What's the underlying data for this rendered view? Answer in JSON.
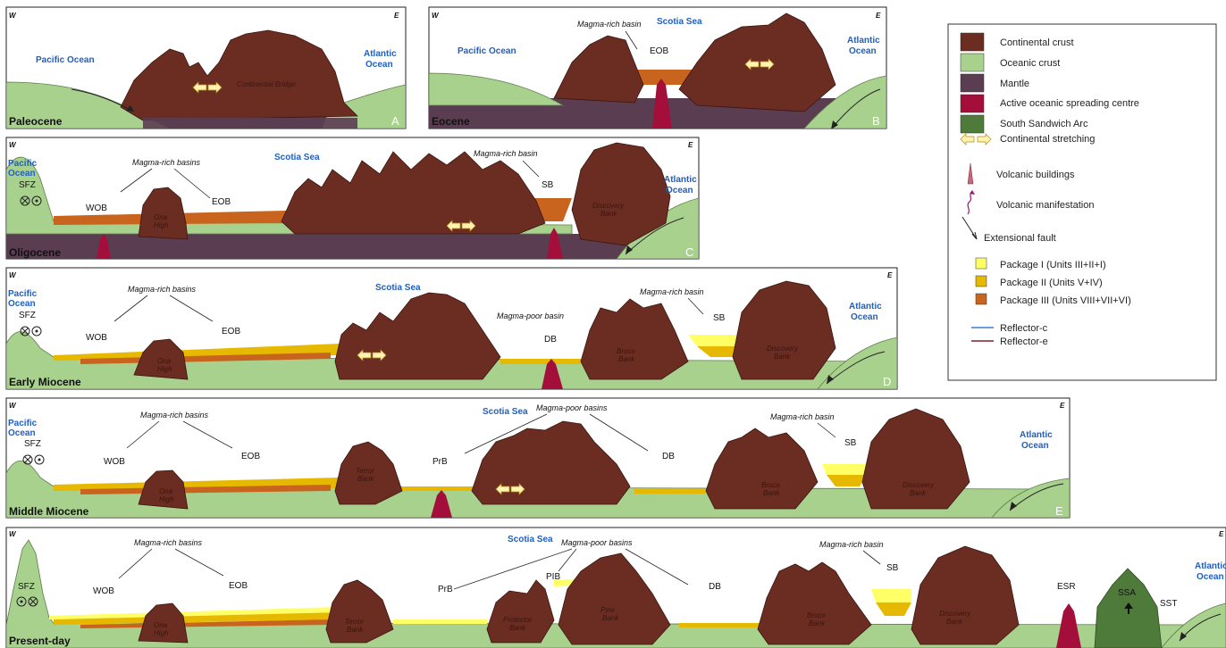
{
  "colors": {
    "continental_crust": "#6b2d22",
    "oceanic_crust": "#a9d18e",
    "mantle": "#5b3d52",
    "spreading_centre": "#a30f3a",
    "south_sandwich_arc": "#4e7a3a",
    "package1": "#ffff66",
    "package2": "#e6b800",
    "package3": "#c8641e",
    "reflector_c": "#3a7bd5",
    "reflector_e": "#8b1a2b",
    "ocean_label": "#1f5fbf"
  },
  "direction": {
    "west": "W",
    "east": "E"
  },
  "panels": {
    "A": {
      "epoch": "Paleocene",
      "letter": "A",
      "pacific": [
        "Pacific Ocean"
      ],
      "atlantic": [
        "Atlantic",
        "Ocean"
      ],
      "bridge": "Continental Bridge"
    },
    "B": {
      "epoch": "Eocene",
      "letter": "B",
      "pacific": [
        "Pacific Ocean"
      ],
      "atlantic": [
        "Atlantic",
        "Ocean"
      ],
      "sea": "Scotia Sea",
      "basin_note": "Magma-rich basin",
      "eob": "EOB"
    },
    "C": {
      "epoch": "Oligocene",
      "letter": "C",
      "pacific": [
        "Pacific",
        "Ocean"
      ],
      "atlantic": [
        "Atlantic",
        "Ocean"
      ],
      "sea": "Scotia Sea",
      "sfz": "SFZ",
      "rich_basins": "Magma-rich basins",
      "rich_basin": "Magma-rich basin",
      "wob": "WOB",
      "eob": "EOB",
      "sb": "SB",
      "ona": [
        "Ona",
        "High"
      ],
      "discovery": [
        "Discovery",
        "Bank"
      ]
    },
    "D": {
      "epoch": "Early Miocene",
      "letter": "D",
      "pacific": [
        "Pacific",
        "Ocean"
      ],
      "atlantic": [
        "Atlantic",
        "Ocean"
      ],
      "sea": "Scotia Sea",
      "sfz": "SFZ",
      "rich_basins": "Magma-rich basins",
      "poor_basin": "Magma-poor basin",
      "rich_basin": "Magma-rich basin",
      "wob": "WOB",
      "eob": "EOB",
      "db": "DB",
      "sb": "SB",
      "ona": [
        "Ona",
        "High"
      ],
      "bruce": [
        "Bruce",
        "Bank"
      ],
      "discovery": [
        "Discovery",
        "Bank"
      ]
    },
    "E": {
      "epoch": "Middle Miocene",
      "letter": "E",
      "pacific": [
        "Pacific",
        "Ocean"
      ],
      "atlantic": [
        "Atlantic",
        "Ocean"
      ],
      "sea": "Scotia Sea",
      "sfz": "SFZ",
      "rich_basins": "Magma-rich basins",
      "poor_basins": "Magma-poor basins",
      "rich_basin": "Magma-rich basin",
      "wob": "WOB",
      "eob": "EOB",
      "prb": "PrB",
      "db": "DB",
      "sb": "SB",
      "ona": [
        "Ona",
        "High"
      ],
      "terror": [
        "Terror",
        "Bank"
      ],
      "bruce": [
        "Bruce",
        "Bank"
      ],
      "discovery": [
        "Discovery",
        "Bank"
      ]
    },
    "F": {
      "epoch": "Present-day",
      "letter": "F",
      "atlantic": [
        "Atlantic",
        "Ocean"
      ],
      "sea": "Scotia Sea",
      "sfz": "SFZ",
      "rich_basins": "Magma-rich basins",
      "poor_basins": "Magma-poor basins",
      "rich_basin": "Magma-rich basin",
      "wob": "WOB",
      "eob": "EOB",
      "prb": "PrB",
      "pib": "PIB",
      "db": "DB",
      "sb": "SB",
      "esr": "ESR",
      "ssa": "SSA",
      "sst": "SST",
      "ona": [
        "Ona",
        "High"
      ],
      "terror": [
        "Terror",
        "Bank"
      ],
      "protector": [
        "Protector",
        "Bank"
      ],
      "pirie": [
        "Pirie",
        "Bank"
      ],
      "bruce": [
        "Bruce",
        "Bank"
      ],
      "discovery": [
        "Discovery",
        "Bank"
      ]
    }
  },
  "legend": {
    "items": [
      {
        "label": "Continental crust"
      },
      {
        "label": "Oceanic crust"
      },
      {
        "label": "Mantle"
      },
      {
        "label": "Active oceanic spreading centre"
      },
      {
        "label": "South Sandwich Arc"
      },
      {
        "label": "Continental stretching"
      },
      {
        "label": "Volcanic buildings"
      },
      {
        "label": "Volcanic manifestation"
      },
      {
        "label": "Extensional fault"
      },
      {
        "label": "Package I (Units III+II+I)"
      },
      {
        "label": "Package II (Units V+IV)"
      },
      {
        "label": "Package III (Units VIII+VII+VI)"
      },
      {
        "label": "Reflector-c"
      },
      {
        "label": "Reflector-e"
      }
    ]
  }
}
